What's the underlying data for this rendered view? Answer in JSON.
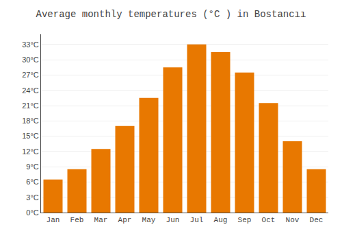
{
  "chart_data": {
    "type": "bar",
    "title": "Average monthly temperatures (°C ) in Bostancıı",
    "categories": [
      "Jan",
      "Feb",
      "Mar",
      "Apr",
      "May",
      "Jun",
      "Jul",
      "Aug",
      "Sep",
      "Oct",
      "Nov",
      "Dec"
    ],
    "values": [
      6.5,
      8.5,
      12.5,
      17.0,
      22.5,
      28.5,
      33.0,
      31.5,
      27.5,
      21.5,
      14.0,
      8.5
    ],
    "color": "#E87800",
    "ylim": [
      0,
      35
    ],
    "yticks": [
      {
        "value": 0,
        "label": "0°C"
      },
      {
        "value": 3,
        "label": "3°C"
      },
      {
        "value": 6,
        "label": "6°C"
      },
      {
        "value": 9,
        "label": "9°C"
      },
      {
        "value": 12,
        "label": "12°C"
      },
      {
        "value": 15,
        "label": "15°C"
      },
      {
        "value": 18,
        "label": "18°C"
      },
      {
        "value": 21,
        "label": "21°C"
      },
      {
        "value": 24,
        "label": "24°C"
      },
      {
        "value": 27,
        "label": "27°C"
      },
      {
        "value": 30,
        "label": "30°C"
      },
      {
        "value": 33,
        "label": "33°C"
      }
    ],
    "grid": true
  }
}
